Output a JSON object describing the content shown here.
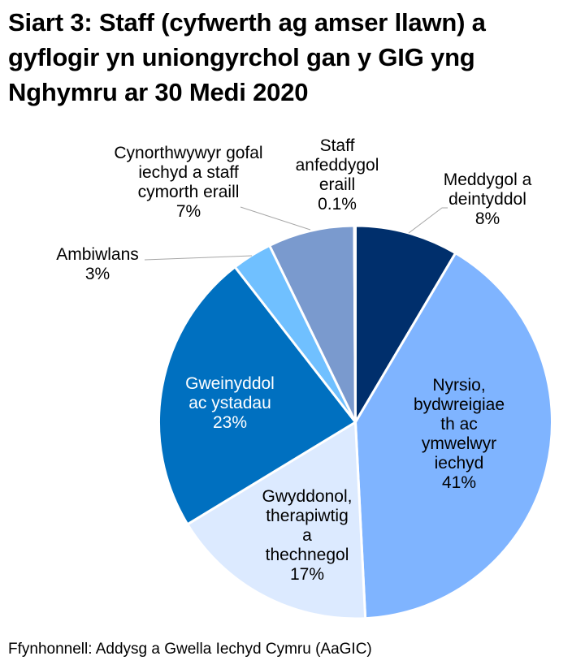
{
  "title": {
    "line1": "Siart 3: Staff (cyfwerth ag amser llawn) a",
    "line2": "gyflogir yn uniongyrchol gan y GIG yng",
    "line3": "Nghymru ar 30 Medi 2020"
  },
  "source": "Ffynhonnell: Addysg a Gwella Iechyd Cymru (AaGIC)",
  "chart_data": {
    "type": "pie",
    "title": "Siart 3: Staff (cyfwerth ag amser llawn) a gyflogir yn uniongyrchol gan y GIG yng Nghymru ar 30 Medi 2020",
    "start_angle": "12 o'clock, clockwise",
    "slices": [
      {
        "label": "Meddygol a deintyddol",
        "value": 8,
        "display": "8%",
        "color": "#002F6C"
      },
      {
        "label": "Nyrsio, bydwreigiaeth ac ymwelwyr iechyd",
        "value": 41,
        "display": "41%",
        "color": "#7FB4FF"
      },
      {
        "label": "Gwyddonol, therapiwtig a thechnegol",
        "value": 17,
        "display": "17%",
        "color": "#DCEAFF"
      },
      {
        "label": "Gweinyddol ac ystadau",
        "value": 23,
        "display": "23%",
        "color": "#0070C0"
      },
      {
        "label": "Ambiwlans",
        "value": 3,
        "display": "3%",
        "color": "#70C0FF"
      },
      {
        "label": "Cynorthwywyr gofal iechyd a staff cymorth eraill",
        "value": 7,
        "display": "7%",
        "color": "#7A9ACE"
      },
      {
        "label": "Staff anfeddygol eraill",
        "value": 0.1,
        "display": "0.1%",
        "color": "#B0C4E6"
      }
    ],
    "render_fractions": [
      0.085,
      0.407,
      0.171,
      0.232,
      0.033,
      0.071,
      0.001
    ]
  },
  "labels": {
    "meddygol": {
      "l1": "Meddygol a",
      "l2": "deintyddol",
      "pct": "8%"
    },
    "nyrsio": {
      "l1": "Nyrsio,",
      "l2": "bydwreigiae",
      "l3": "th ac",
      "l4": "ymwelwyr",
      "l5": "iechyd",
      "pct": "41%"
    },
    "gwyddonol": {
      "l1": "Gwyddonol,",
      "l2": "therapiwtig",
      "l3": "a",
      "l4": "thechnegol",
      "pct": "17%"
    },
    "gweinyddol": {
      "l1": "Gweinyddol",
      "l2": "ac ystadau",
      "pct": "23%"
    },
    "ambiwlans": {
      "l1": "Ambiwlans",
      "pct": "3%"
    },
    "cynorthwywyr": {
      "l1": "Cynorthwywyr gofal",
      "l2": "iechyd a staff",
      "l3": "cymorth eraill",
      "pct": "7%"
    },
    "anfeddygol": {
      "l1": "Staff",
      "l2": "anfeddygol",
      "l3": "eraill",
      "pct": "0.1%"
    }
  }
}
